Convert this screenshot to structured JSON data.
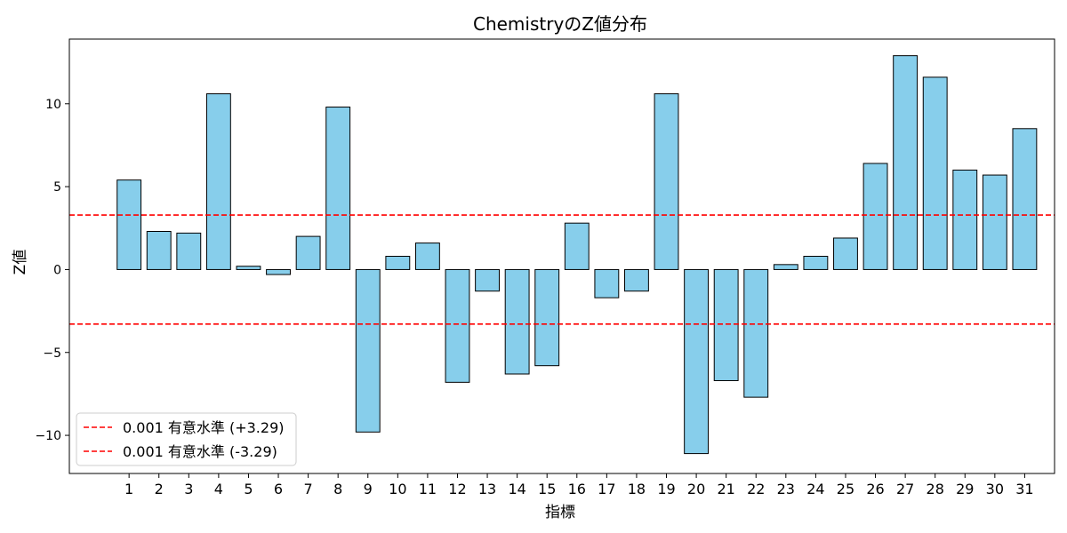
{
  "chart_data": {
    "type": "bar",
    "title": "ChemistryのZ値分布",
    "xlabel": "指標",
    "ylabel": "Z値",
    "categories": [
      "1",
      "2",
      "3",
      "4",
      "5",
      "6",
      "7",
      "8",
      "9",
      "10",
      "11",
      "12",
      "13",
      "14",
      "15",
      "16",
      "17",
      "18",
      "19",
      "20",
      "21",
      "22",
      "23",
      "24",
      "25",
      "26",
      "27",
      "28",
      "29",
      "30",
      "31"
    ],
    "values": [
      5.4,
      2.3,
      2.2,
      10.6,
      0.2,
      -0.3,
      2.0,
      9.8,
      -9.8,
      0.8,
      1.6,
      -6.8,
      -1.3,
      -6.3,
      -5.8,
      2.8,
      -1.7,
      -1.3,
      10.6,
      -11.1,
      -6.7,
      -7.7,
      0.3,
      0.8,
      1.9,
      6.4,
      12.9,
      11.6,
      6.0,
      5.7,
      8.5
    ],
    "ylim": [
      -12.3,
      13.9
    ],
    "yticks": [
      -10,
      -5,
      0,
      5,
      10
    ],
    "ytick_labels": [
      "−10",
      "−5",
      "0",
      "5",
      "10"
    ],
    "bar_color": "#87ceeb",
    "bar_edge_color": "#000000",
    "reference_lines": [
      {
        "y": 3.29,
        "color": "#ff0000",
        "style": "dashed",
        "label": "0.001 有意水準 (+3.29)"
      },
      {
        "y": -3.29,
        "color": "#ff0000",
        "style": "dashed",
        "label": "0.001 有意水準 (-3.29)"
      }
    ],
    "legend_position": "lower-left",
    "grid": false
  }
}
